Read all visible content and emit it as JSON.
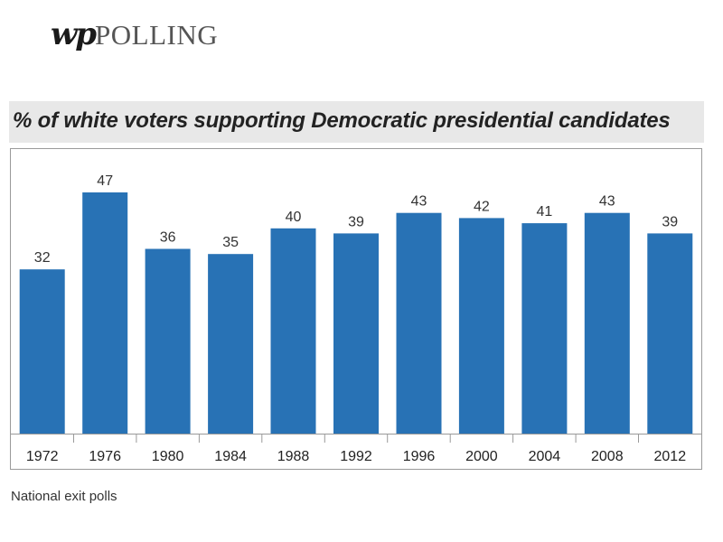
{
  "logo": {
    "mark": "wp",
    "text": "POLLING"
  },
  "footer": {
    "source": "National exit polls"
  },
  "colors": {
    "bar": "#2872b5",
    "title_background": "#e8e8e8",
    "frame_border": "#9a9a9a"
  },
  "chart_data": {
    "type": "bar",
    "title": "% of white voters supporting Democratic presidential candidates",
    "xlabel": "",
    "ylabel": "",
    "categories": [
      "1972",
      "1976",
      "1980",
      "1984",
      "1988",
      "1992",
      "1996",
      "2000",
      "2004",
      "2008",
      "2012"
    ],
    "values": [
      32,
      47,
      36,
      35,
      40,
      39,
      43,
      42,
      41,
      43,
      39
    ],
    "ylim": [
      0,
      50
    ],
    "grid": false,
    "data_labels": true
  }
}
